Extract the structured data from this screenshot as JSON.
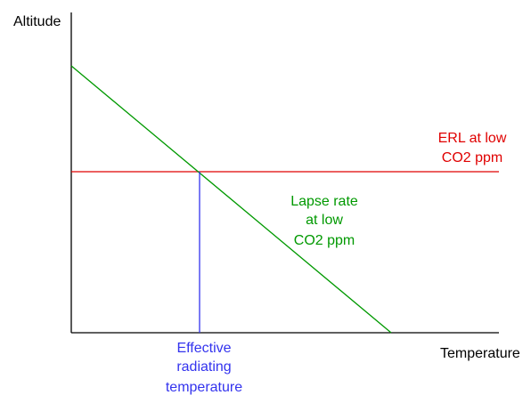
{
  "axes": {
    "y_label": "Altitude",
    "x_label": "Temperature"
  },
  "lines": {
    "erl": {
      "label_lines": [
        "ERL at low",
        "CO2 ppm"
      ],
      "color": "#e00000"
    },
    "lapse_rate": {
      "label_lines": [
        "Lapse rate",
        "at low",
        "CO2 ppm"
      ],
      "color": "#009900"
    },
    "effective_radiating": {
      "label_lines": [
        "Effective",
        "radiating",
        "temperature"
      ],
      "color": "#3333ee"
    }
  },
  "axis_color": "#000000"
}
